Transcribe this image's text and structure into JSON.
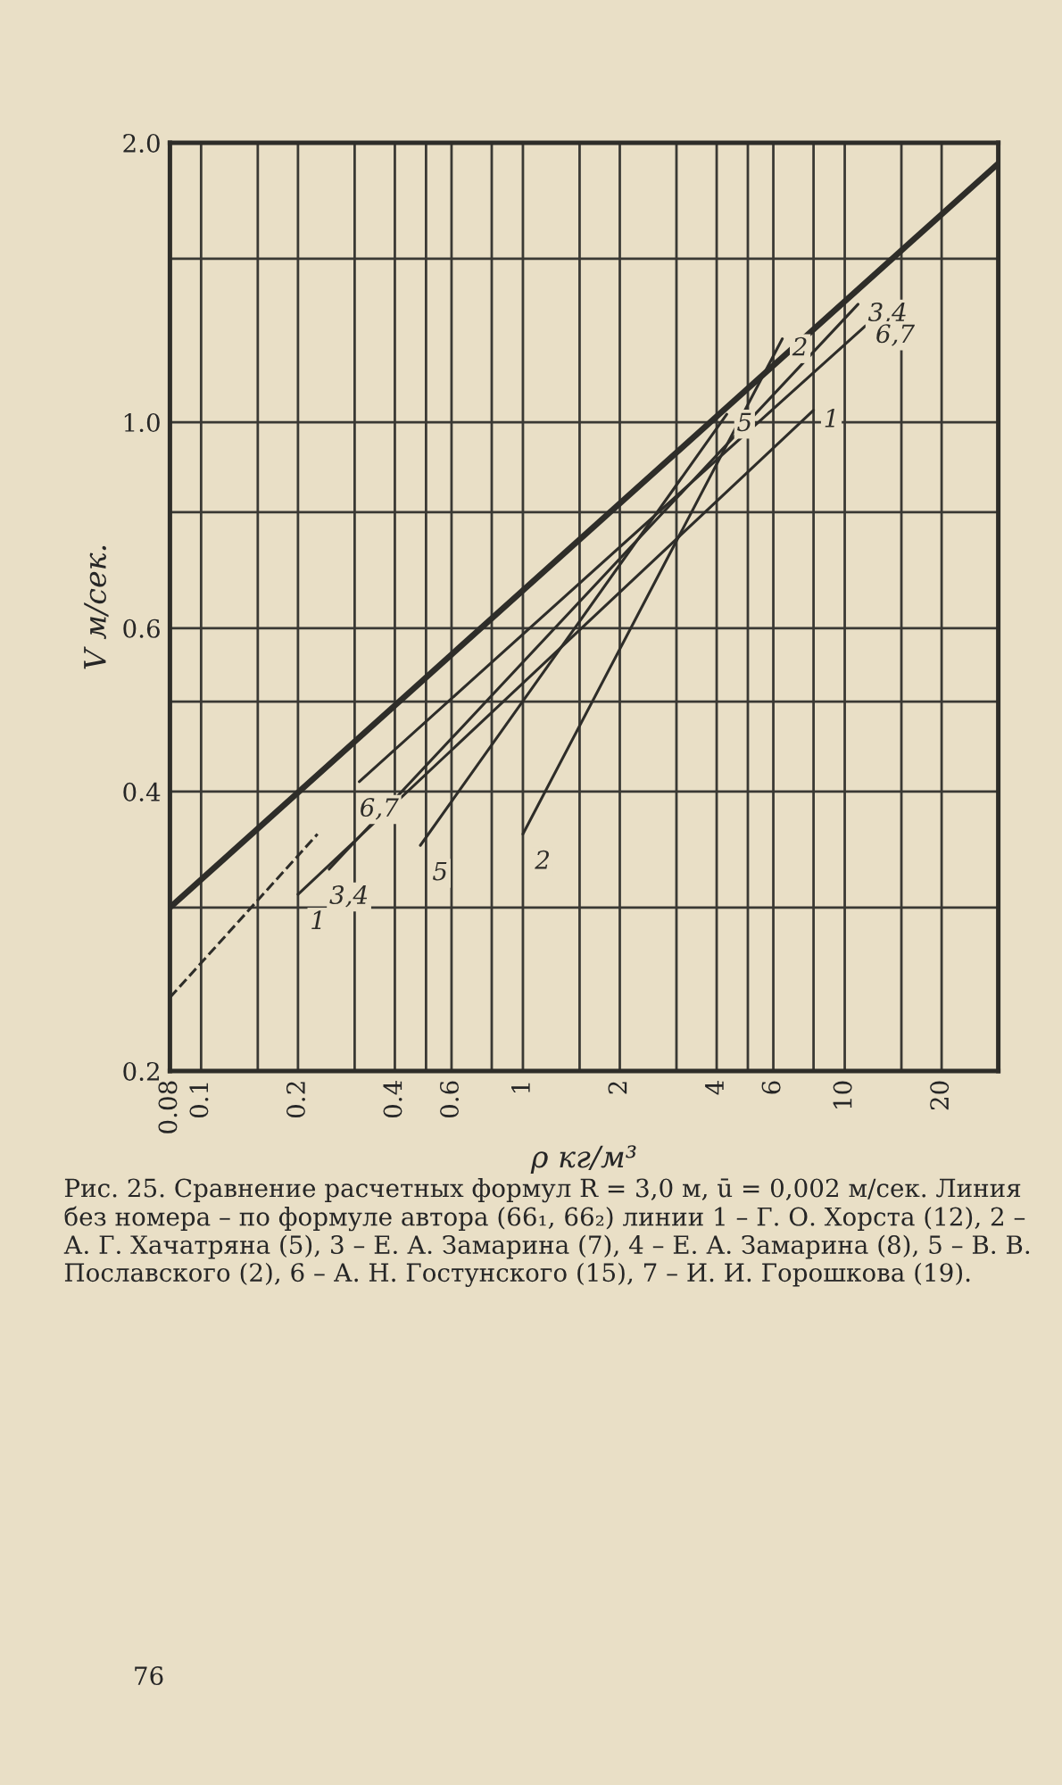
{
  "chart_data": {
    "type": "line",
    "xlabel": "ρ кг/м³",
    "ylabel": "V м/сек.",
    "log": "xy",
    "grid": true,
    "xlim": [
      0.08,
      30
    ],
    "ylim": [
      0.2,
      2.0
    ],
    "xticks": [
      0.08,
      0.1,
      {
        "value": 0.15,
        "label": null
      },
      0.2,
      {
        "value": 0.3,
        "label": null
      },
      0.4,
      {
        "value": 0.5,
        "label": null
      },
      0.6,
      {
        "value": 0.8,
        "label": null
      },
      1,
      {
        "value": 1.5,
        "label": null
      },
      2,
      {
        "value": 3,
        "label": null
      },
      4,
      {
        "value": 5,
        "label": null
      },
      6,
      {
        "value": 8,
        "label": null
      },
      10,
      {
        "value": 15,
        "label": null
      },
      20,
      {
        "value": 30,
        "label": null
      }
    ],
    "yticks": [
      {
        "value": 0.2,
        "label": "0.2"
      },
      {
        "value": 0.3,
        "label": null
      },
      0.4,
      {
        "value": 0.5,
        "label": null
      },
      0.6,
      {
        "value": 0.8,
        "label": null
      },
      {
        "value": 1.0,
        "label": "1.0"
      },
      {
        "value": 1.5,
        "label": null
      },
      {
        "value": 2.0,
        "label": "2.0"
      }
    ],
    "series": [
      {
        "color": "#2e2d29",
        "x": [
          0.08,
          30
        ],
        "values": [
          0.3,
          1.9
        ]
      },
      {
        "name": "1",
        "color": "#2e2d29",
        "x": [
          0.2,
          8
        ],
        "values": [
          0.31,
          1.03
        ]
      },
      {
        "color": "#2e2d29",
        "line_style": "dashed",
        "x": [
          0.08,
          0.23
        ],
        "values": [
          0.24,
          0.36
        ]
      },
      {
        "name": "2",
        "color": "#2e2d29",
        "x": [
          1.0,
          6.4
        ],
        "values": [
          0.36,
          1.23
        ]
      },
      {
        "name": "3,4",
        "color": "#2e2d29",
        "x": [
          0.25,
          11
        ],
        "values": [
          0.33,
          1.34
        ]
      },
      {
        "name": "5",
        "color": "#2e2d29",
        "x": [
          0.48,
          4.3
        ],
        "values": [
          0.35,
          1.02
        ]
      },
      {
        "name": "6,7",
        "color": "#2e2d29",
        "x": [
          0.31,
          11.6
        ],
        "values": [
          0.41,
          1.27
        ]
      }
    ],
    "annotations": [
      "Рис. 25. Сравнение расчетных формул R = 3,0 м, ū = 0,002 м/сек. Линия без номера – по формуле автора (66₁, 66₂) линии 1 – Г. О. Хорста (12), 2 – А. Г. Хачатряна (5), 3 – Е. А. Замарина (7), 4 – Е. А. Замарина (8), 5 – В. В. Пославского (2), 6 – А. Н. Гостунского (15), 7 – И. И. Горошкова (19).",
      "76"
    ]
  }
}
